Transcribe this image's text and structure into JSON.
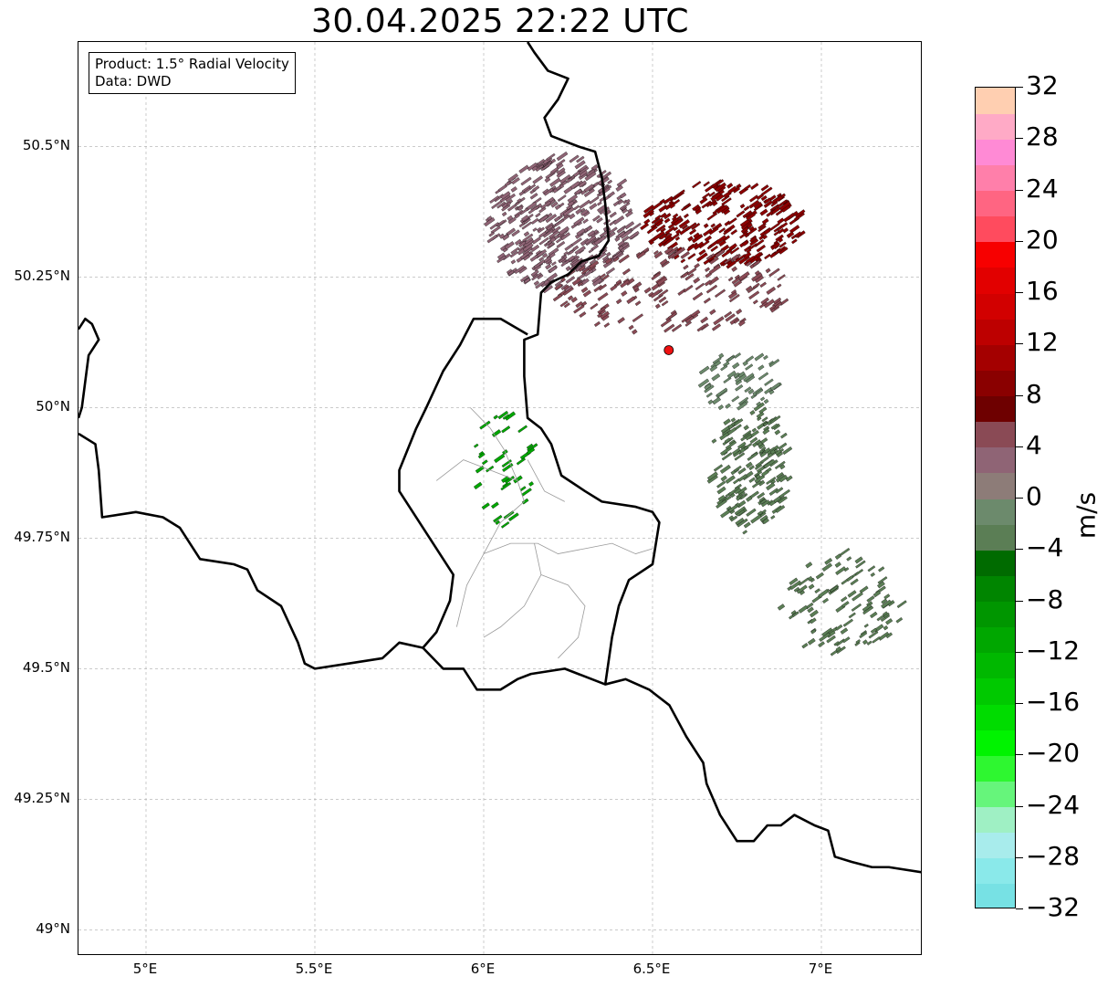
{
  "title": "30.04.2025 22:22 UTC",
  "info": {
    "line1": "Product: 1.5° Radial Velocity",
    "line2": "Data: DWD"
  },
  "map": {
    "lon_range": [
      4.8,
      7.3
    ],
    "lat_range": [
      48.95,
      50.7
    ],
    "lat_ticks": [
      {
        "value": 50.5,
        "label": "50.5°N"
      },
      {
        "value": 50.25,
        "label": "50.25°N"
      },
      {
        "value": 50.0,
        "label": "50°N"
      },
      {
        "value": 49.75,
        "label": "49.75°N"
      },
      {
        "value": 49.5,
        "label": "49.5°N"
      },
      {
        "value": 49.25,
        "label": "49.25°N"
      },
      {
        "value": 49.0,
        "label": "49°N"
      }
    ],
    "lon_ticks": [
      {
        "value": 5.0,
        "label": "5°E"
      },
      {
        "value": 5.5,
        "label": "5.5°E"
      },
      {
        "value": 6.0,
        "label": "6°E"
      },
      {
        "value": 6.5,
        "label": "6.5°E"
      },
      {
        "value": 7.0,
        "label": "7°E"
      }
    ],
    "gridlines": true,
    "radar_site": {
      "lon": 6.548,
      "lat": 50.11,
      "color": "#ee1111"
    },
    "borders": [
      [
        [
          6.13,
          50.7
        ],
        [
          6.15,
          50.68
        ],
        [
          6.19,
          50.645
        ],
        [
          6.25,
          50.63
        ],
        [
          6.22,
          50.59
        ],
        [
          6.18,
          50.555
        ],
        [
          6.2,
          50.52
        ],
        [
          6.28,
          50.5
        ],
        [
          6.33,
          50.49
        ],
        [
          6.35,
          50.44
        ],
        [
          6.36,
          50.39
        ],
        [
          6.37,
          50.32
        ],
        [
          6.34,
          50.29
        ],
        [
          6.29,
          50.28
        ],
        [
          6.25,
          50.255
        ],
        [
          6.2,
          50.24
        ],
        [
          6.17,
          50.22
        ],
        [
          6.16,
          50.14
        ],
        [
          6.12,
          50.13
        ],
        [
          6.12,
          50.06
        ],
        [
          6.13,
          49.98
        ],
        [
          6.17,
          49.96
        ],
        [
          6.2,
          49.93
        ],
        [
          6.23,
          49.87
        ],
        [
          6.3,
          49.84
        ],
        [
          6.35,
          49.82
        ],
        [
          6.45,
          49.81
        ],
        [
          6.5,
          49.8
        ],
        [
          6.52,
          49.78
        ],
        [
          6.5,
          49.7
        ],
        [
          6.43,
          49.67
        ],
        [
          6.4,
          49.62
        ],
        [
          6.38,
          49.56
        ],
        [
          6.36,
          49.47
        ]
      ],
      [
        [
          6.13,
          50.14
        ],
        [
          6.05,
          50.17
        ],
        [
          5.97,
          50.17
        ],
        [
          5.93,
          50.12
        ],
        [
          5.88,
          50.07
        ],
        [
          5.83,
          50.0
        ],
        [
          5.8,
          49.96
        ],
        [
          5.75,
          49.88
        ],
        [
          5.75,
          49.84
        ],
        [
          5.79,
          49.8
        ],
        [
          5.86,
          49.73
        ],
        [
          5.91,
          49.68
        ],
        [
          5.9,
          49.63
        ],
        [
          5.86,
          49.57
        ],
        [
          5.82,
          49.54
        ]
      ],
      [
        [
          5.82,
          49.54
        ],
        [
          5.88,
          49.5
        ],
        [
          5.94,
          49.5
        ],
        [
          5.98,
          49.46
        ],
        [
          6.05,
          49.46
        ],
        [
          6.1,
          49.48
        ],
        [
          6.14,
          49.49
        ],
        [
          6.24,
          49.5
        ],
        [
          6.36,
          49.47
        ],
        [
          6.42,
          49.48
        ],
        [
          6.49,
          49.46
        ],
        [
          6.55,
          49.43
        ],
        [
          6.6,
          49.37
        ],
        [
          6.65,
          49.32
        ],
        [
          6.66,
          49.28
        ],
        [
          6.7,
          49.22
        ],
        [
          6.75,
          49.17
        ],
        [
          6.8,
          49.17
        ],
        [
          6.84,
          49.2
        ],
        [
          6.88,
          49.2
        ],
        [
          6.92,
          49.22
        ],
        [
          6.98,
          49.2
        ],
        [
          7.02,
          49.19
        ],
        [
          7.04,
          49.14
        ],
        [
          7.09,
          49.13
        ],
        [
          7.15,
          49.12
        ],
        [
          7.2,
          49.12
        ],
        [
          7.3,
          49.11
        ]
      ],
      [
        [
          5.82,
          49.54
        ],
        [
          5.75,
          49.55
        ],
        [
          5.7,
          49.52
        ],
        [
          5.6,
          49.51
        ],
        [
          5.5,
          49.5
        ],
        [
          5.47,
          49.51
        ],
        [
          5.45,
          49.55
        ],
        [
          5.4,
          49.62
        ],
        [
          5.33,
          49.65
        ],
        [
          5.3,
          49.69
        ],
        [
          5.26,
          49.7
        ],
        [
          5.16,
          49.71
        ],
        [
          5.1,
          49.77
        ],
        [
          5.05,
          49.79
        ],
        [
          4.97,
          49.8
        ],
        [
          4.87,
          49.79
        ],
        [
          4.86,
          49.88
        ],
        [
          4.85,
          49.93
        ],
        [
          4.8,
          49.95
        ]
      ],
      [
        [
          4.8,
          50.15
        ],
        [
          4.82,
          50.17
        ],
        [
          4.84,
          50.16
        ],
        [
          4.86,
          50.13
        ],
        [
          4.83,
          50.1
        ],
        [
          4.82,
          50.05
        ],
        [
          4.81,
          50.0
        ],
        [
          4.8,
          49.98
        ]
      ]
    ],
    "admin_lines": [
      [
        [
          5.86,
          49.86
        ],
        [
          5.94,
          49.9
        ],
        [
          6.02,
          49.88
        ],
        [
          6.1,
          49.86
        ],
        [
          6.12,
          49.82
        ],
        [
          6.05,
          49.78
        ],
        [
          6.0,
          49.72
        ],
        [
          5.95,
          49.66
        ],
        [
          5.92,
          49.58
        ]
      ],
      [
        [
          5.96,
          50.0
        ],
        [
          6.02,
          49.96
        ],
        [
          6.06,
          49.92
        ],
        [
          6.1,
          49.86
        ]
      ],
      [
        [
          6.0,
          49.72
        ],
        [
          6.08,
          49.74
        ],
        [
          6.16,
          49.74
        ],
        [
          6.22,
          49.72
        ],
        [
          6.3,
          49.73
        ],
        [
          6.38,
          49.74
        ],
        [
          6.45,
          49.72
        ],
        [
          6.5,
          49.73
        ]
      ],
      [
        [
          6.15,
          49.74
        ],
        [
          6.17,
          49.68
        ],
        [
          6.12,
          49.62
        ],
        [
          6.05,
          49.58
        ],
        [
          6.0,
          49.56
        ]
      ],
      [
        [
          6.17,
          49.68
        ],
        [
          6.25,
          49.66
        ],
        [
          6.3,
          49.62
        ],
        [
          6.28,
          49.56
        ],
        [
          6.22,
          49.52
        ]
      ],
      [
        [
          6.13,
          49.9
        ],
        [
          6.18,
          49.84
        ],
        [
          6.24,
          49.82
        ]
      ]
    ]
  },
  "colorbar": {
    "unit": "m/s",
    "min": -32,
    "max": 32,
    "step": 2,
    "colors": [
      "#77e1e4",
      "#8ae9ea",
      "#a8ecec",
      "#9ff0c4",
      "#66f57b",
      "#2ef730",
      "#00f300",
      "#00dc00",
      "#00c900",
      "#00b800",
      "#00a700",
      "#009600",
      "#008500",
      "#006b00",
      "#5b7e55",
      "#6c8a6c",
      "#8d7c78",
      "#8f6475",
      "#8a4a55",
      "#6e0000",
      "#8a0000",
      "#a40000",
      "#bd0000",
      "#d20000",
      "#e20000",
      "#f70000",
      "#ff4b5e",
      "#ff6582",
      "#ff7faa",
      "#ff8ad5",
      "#ffaac6",
      "#ffcfb1"
    ],
    "ticks": [
      "−32",
      "−28",
      "−24",
      "−20",
      "−16",
      "−12",
      "−8",
      "−4",
      "0",
      "4",
      "8",
      "12",
      "16",
      "20",
      "24",
      "28",
      "32"
    ]
  },
  "velocity_regions": [
    {
      "lon": 6.22,
      "lat": 50.35,
      "r_lon": 0.22,
      "r_lat": 0.13,
      "count": 420,
      "color": "#8f6475"
    },
    {
      "lon": 6.7,
      "lat": 50.35,
      "r_lon": 0.24,
      "r_lat": 0.08,
      "count": 260,
      "color": "#8a0000"
    },
    {
      "lon": 6.55,
      "lat": 50.22,
      "r_lon": 0.35,
      "r_lat": 0.08,
      "count": 180,
      "color": "#8a4a55"
    },
    {
      "lon": 6.78,
      "lat": 49.88,
      "r_lon": 0.12,
      "r_lat": 0.12,
      "count": 170,
      "color": "#5b7e55"
    },
    {
      "lon": 7.05,
      "lat": 49.62,
      "r_lon": 0.18,
      "r_lat": 0.1,
      "count": 110,
      "color": "#5b7e55"
    },
    {
      "lon": 6.05,
      "lat": 49.88,
      "r_lon": 0.09,
      "r_lat": 0.12,
      "count": 40,
      "color": "#00a700"
    },
    {
      "lon": 6.75,
      "lat": 50.05,
      "r_lon": 0.12,
      "r_lat": 0.06,
      "count": 60,
      "color": "#6c8a6c"
    }
  ]
}
